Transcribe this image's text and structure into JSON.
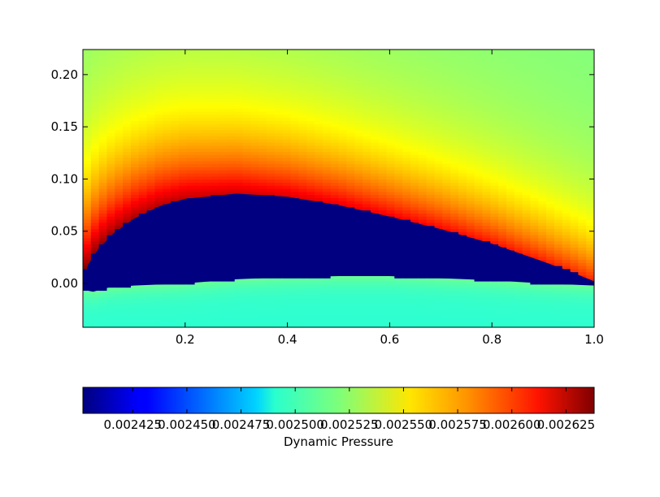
{
  "chart_data": {
    "type": "heatmap",
    "title": "",
    "xlabel": "",
    "ylabel": "",
    "xlim": [
      0.0,
      1.0
    ],
    "ylim": [
      -0.042,
      0.224
    ],
    "xticks": [
      0.2,
      0.4,
      0.6,
      0.8,
      1.0
    ],
    "xtick_labels": [
      "0.2",
      "0.4",
      "0.6",
      "0.8",
      "1.0"
    ],
    "yticks": [
      0.0,
      0.05,
      0.1,
      0.15,
      0.2
    ],
    "ytick_labels": [
      "0.00",
      "0.05",
      "0.10",
      "0.15",
      "0.20"
    ],
    "colormap": "jet",
    "colorbar": {
      "label": "Dynamic Pressure",
      "orientation": "horizontal",
      "range": [
        0.002402,
        0.002638
      ],
      "ticks": [
        0.002425,
        0.00245,
        0.002475,
        0.0025,
        0.002525,
        0.00255,
        0.002575,
        0.0026,
        0.002625
      ],
      "tick_labels": [
        "0.002425",
        "0.002450",
        "0.002475",
        "0.002500",
        "0.002525",
        "0.002550",
        "0.002575",
        "0.002600",
        "0.002625"
      ]
    },
    "airfoil": {
      "upper_surface": [
        {
          "x": 0.0,
          "y": 0.0
        },
        {
          "x": 0.01,
          "y": 0.018
        },
        {
          "x": 0.03,
          "y": 0.033
        },
        {
          "x": 0.06,
          "y": 0.048
        },
        {
          "x": 0.1,
          "y": 0.062
        },
        {
          "x": 0.15,
          "y": 0.074
        },
        {
          "x": 0.2,
          "y": 0.081
        },
        {
          "x": 0.3,
          "y": 0.086
        },
        {
          "x": 0.4,
          "y": 0.083
        },
        {
          "x": 0.5,
          "y": 0.075
        },
        {
          "x": 0.6,
          "y": 0.064
        },
        {
          "x": 0.7,
          "y": 0.052
        },
        {
          "x": 0.8,
          "y": 0.038
        },
        {
          "x": 0.9,
          "y": 0.021
        },
        {
          "x": 0.95,
          "y": 0.012
        },
        {
          "x": 1.0,
          "y": 0.002
        }
      ],
      "lower_surface": [
        {
          "x": 0.0,
          "y": -0.006
        },
        {
          "x": 0.02,
          "y": -0.008
        },
        {
          "x": 0.05,
          "y": -0.004
        },
        {
          "x": 0.1,
          "y": -0.002
        },
        {
          "x": 0.2,
          "y": 0.0
        },
        {
          "x": 0.3,
          "y": 0.004
        },
        {
          "x": 0.4,
          "y": 0.006
        },
        {
          "x": 0.5,
          "y": 0.007
        },
        {
          "x": 0.6,
          "y": 0.007
        },
        {
          "x": 0.7,
          "y": 0.005
        },
        {
          "x": 0.8,
          "y": 0.003
        },
        {
          "x": 0.9,
          "y": 0.0
        },
        {
          "x": 1.0,
          "y": -0.002
        }
      ],
      "fill_color": "#000080"
    },
    "colors": {
      "jet_dark_blue": "#00007f",
      "jet_dark_red": "#7f0000"
    }
  }
}
